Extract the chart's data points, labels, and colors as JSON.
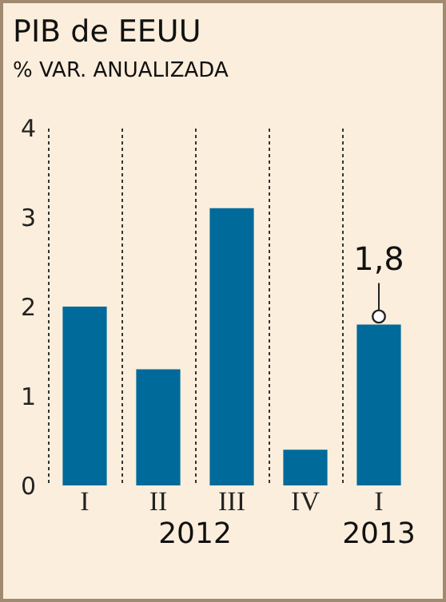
{
  "chart_data": {
    "type": "bar",
    "title": "PIB de EEUU",
    "subtitle": "% VAR. ANUALIZADA",
    "categories": [
      "I",
      "II",
      "III",
      "IV",
      "I"
    ],
    "values": [
      2.0,
      1.3,
      3.1,
      0.4,
      1.8
    ],
    "value_labels": [
      null,
      null,
      null,
      null,
      "1,8"
    ],
    "color": "#006b9a",
    "ylim": [
      0,
      4
    ],
    "yticks": [
      0,
      1,
      2,
      3,
      4
    ],
    "grid": "x",
    "annotations": [
      "2012",
      "2013"
    ]
  }
}
